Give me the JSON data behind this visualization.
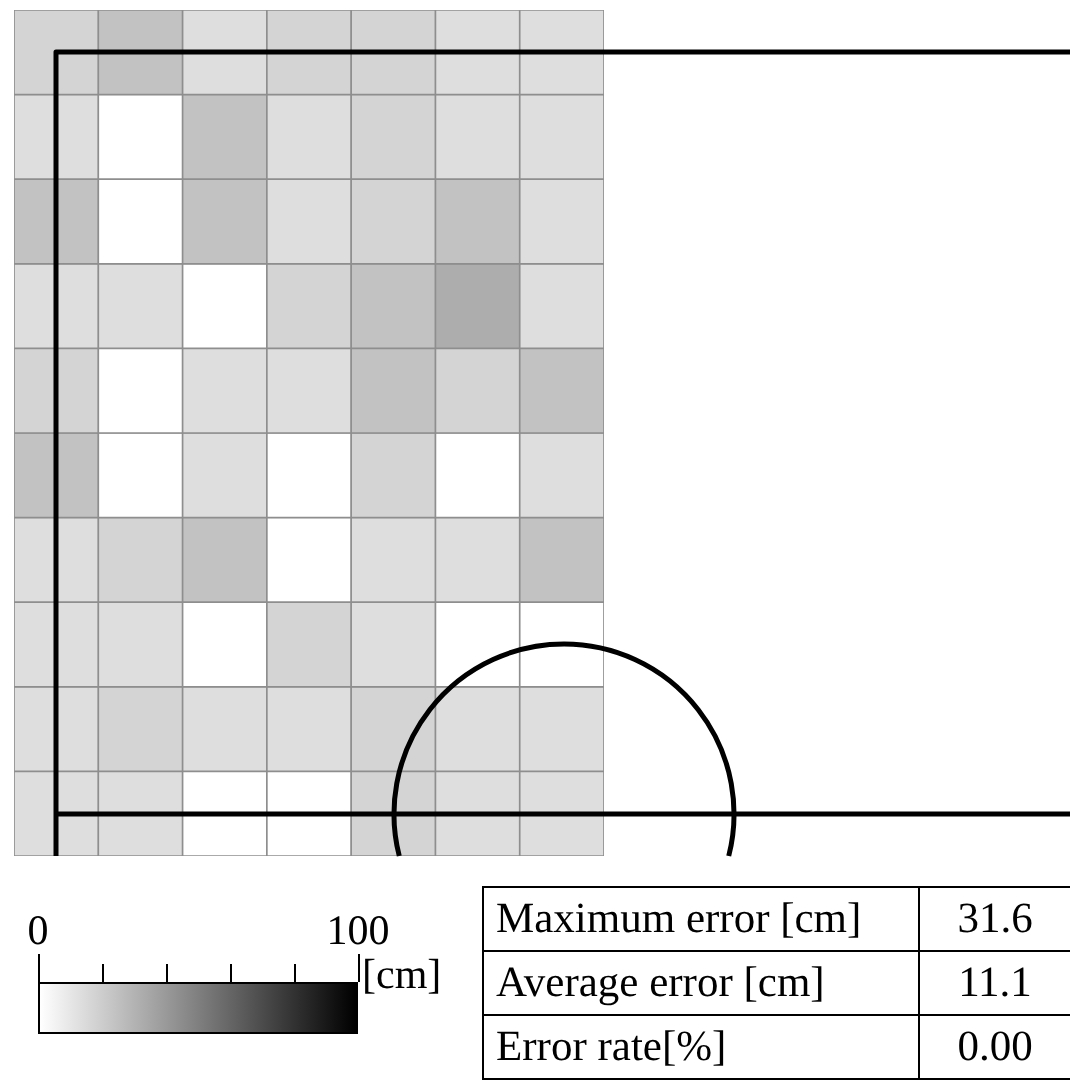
{
  "chart_data": {
    "type": "heatmap",
    "categories": [
      null,
      null,
      null,
      null,
      null,
      null,
      null
    ],
    "y_categories": [
      null,
      null,
      null,
      null,
      null,
      null,
      null,
      null,
      null,
      null
    ],
    "cells": [
      [
        17,
        24,
        13,
        17,
        17,
        13,
        13
      ],
      [
        13,
        0,
        24,
        13,
        17,
        13,
        13
      ],
      [
        24,
        0,
        24,
        13,
        17,
        24,
        13
      ],
      [
        13,
        13,
        0,
        17,
        24,
        32,
        13
      ],
      [
        17,
        0,
        13,
        13,
        24,
        17,
        24
      ],
      [
        24,
        0,
        13,
        0,
        17,
        0,
        13
      ],
      [
        13,
        17,
        24,
        0,
        13,
        13,
        24
      ],
      [
        13,
        13,
        0,
        17,
        13,
        0,
        0
      ],
      [
        13,
        17,
        13,
        13,
        17,
        13,
        13
      ],
      [
        13,
        13,
        0,
        0,
        17,
        13,
        13
      ]
    ],
    "clim": [
      0,
      100
    ],
    "cticks": [
      0,
      {
        "value": 20,
        "label": null
      },
      {
        "value": 40,
        "label": null
      },
      {
        "value": 60,
        "label": null
      },
      {
        "value": 80,
        "label": null
      },
      100
    ],
    "clabel": "[cm]",
    "tick_labels": false,
    "annotations": [
      "Maximum error [cm]",
      "31.6",
      "Average error [cm]",
      "11.1",
      "Error rate[%]",
      "0.00"
    ]
  }
}
